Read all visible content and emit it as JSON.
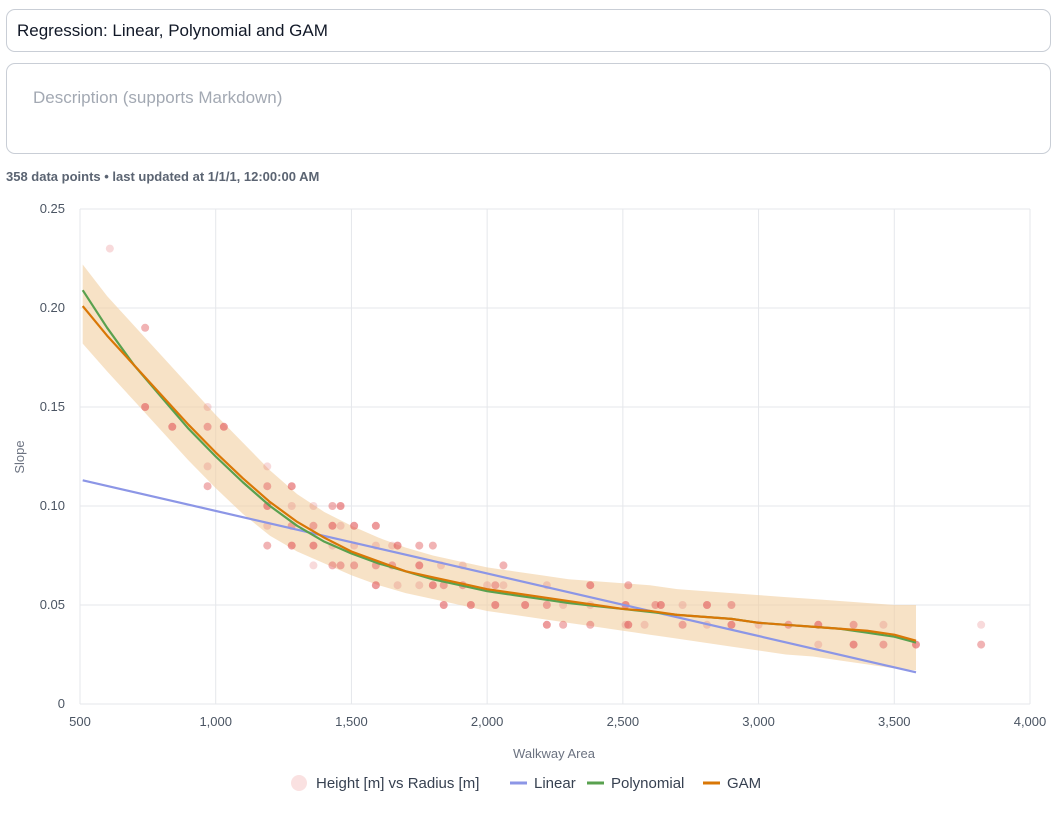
{
  "header": {
    "title_value": "Regression: Linear, Polynomial and GAM",
    "description_placeholder": "Description (supports Markdown)",
    "meta_text": "358 data points • last updated at 1/1/1, 12:00:00 AM"
  },
  "chart_data": {
    "type": "scatter",
    "xlabel": "Walkway Area",
    "ylabel": "Slope",
    "xlim": [
      500,
      4000
    ],
    "ylim": [
      0,
      0.25
    ],
    "x_ticks": [
      500,
      1000,
      1500,
      2000,
      2500,
      3000,
      3500,
      4000
    ],
    "x_tick_labels": [
      "500",
      "1,000",
      "1,500",
      "2,000",
      "2,500",
      "3,000",
      "3,500",
      "4,000"
    ],
    "y_ticks": [
      0,
      0.05,
      0.1,
      0.15,
      0.2,
      0.25
    ],
    "y_tick_labels": [
      "0",
      "0.05",
      "0.10",
      "0.15",
      "0.20",
      "0.25"
    ],
    "grid": true,
    "legend_position": "bottom",
    "colors": {
      "points": "#e15759",
      "linear": "#8c96e6",
      "polynomial": "#59a14f",
      "gam": "#d97706",
      "band": "#f2cfa0"
    },
    "scatter": {
      "name": "Height [m] vs Radius  [m]",
      "points": [
        [
          610,
          0.23
        ],
        [
          740,
          0.19
        ],
        [
          740,
          0.15
        ],
        [
          970,
          0.15
        ],
        [
          970,
          0.14
        ],
        [
          1030,
          0.14
        ],
        [
          970,
          0.12
        ],
        [
          970,
          0.11
        ],
        [
          840,
          0.14
        ],
        [
          1190,
          0.12
        ],
        [
          1190,
          0.11
        ],
        [
          1190,
          0.1
        ],
        [
          1190,
          0.09
        ],
        [
          1190,
          0.08
        ],
        [
          1280,
          0.11
        ],
        [
          1280,
          0.1
        ],
        [
          1280,
          0.09
        ],
        [
          1280,
          0.08
        ],
        [
          1360,
          0.1
        ],
        [
          1360,
          0.09
        ],
        [
          1360,
          0.08
        ],
        [
          1360,
          0.07
        ],
        [
          1430,
          0.1
        ],
        [
          1430,
          0.09
        ],
        [
          1430,
          0.08
        ],
        [
          1430,
          0.07
        ],
        [
          1460,
          0.1
        ],
        [
          1460,
          0.09
        ],
        [
          1460,
          0.07
        ],
        [
          1510,
          0.09
        ],
        [
          1510,
          0.08
        ],
        [
          1510,
          0.07
        ],
        [
          1590,
          0.09
        ],
        [
          1590,
          0.08
        ],
        [
          1590,
          0.07
        ],
        [
          1590,
          0.06
        ],
        [
          1650,
          0.08
        ],
        [
          1650,
          0.07
        ],
        [
          1670,
          0.08
        ],
        [
          1670,
          0.06
        ],
        [
          1750,
          0.08
        ],
        [
          1750,
          0.07
        ],
        [
          1750,
          0.06
        ],
        [
          1800,
          0.08
        ],
        [
          1800,
          0.06
        ],
        [
          1830,
          0.07
        ],
        [
          1840,
          0.06
        ],
        [
          1840,
          0.05
        ],
        [
          1910,
          0.07
        ],
        [
          1910,
          0.06
        ],
        [
          1940,
          0.05
        ],
        [
          2000,
          0.06
        ],
        [
          2030,
          0.06
        ],
        [
          2030,
          0.05
        ],
        [
          2060,
          0.06
        ],
        [
          2060,
          0.07
        ],
        [
          2140,
          0.05
        ],
        [
          2220,
          0.06
        ],
        [
          2220,
          0.05
        ],
        [
          2220,
          0.04
        ],
        [
          2280,
          0.05
        ],
        [
          2280,
          0.04
        ],
        [
          2380,
          0.06
        ],
        [
          2380,
          0.05
        ],
        [
          2380,
          0.04
        ],
        [
          2510,
          0.05
        ],
        [
          2510,
          0.04
        ],
        [
          2520,
          0.06
        ],
        [
          2520,
          0.04
        ],
        [
          2580,
          0.04
        ],
        [
          2620,
          0.05
        ],
        [
          2640,
          0.05
        ],
        [
          2720,
          0.05
        ],
        [
          2720,
          0.04
        ],
        [
          2810,
          0.05
        ],
        [
          2810,
          0.04
        ],
        [
          2900,
          0.05
        ],
        [
          2900,
          0.04
        ],
        [
          3000,
          0.04
        ],
        [
          3110,
          0.04
        ],
        [
          3220,
          0.04
        ],
        [
          3220,
          0.03
        ],
        [
          3350,
          0.04
        ],
        [
          3350,
          0.03
        ],
        [
          3460,
          0.04
        ],
        [
          3460,
          0.03
        ],
        [
          3580,
          0.03
        ],
        [
          3820,
          0.04
        ],
        [
          3820,
          0.03
        ]
      ]
    },
    "series": [
      {
        "name": "Linear",
        "x": [
          510,
          3580
        ],
        "y": [
          0.113,
          0.016
        ]
      },
      {
        "name": "Polynomial",
        "x": [
          510,
          600,
          700,
          800,
          900,
          1000,
          1100,
          1200,
          1300,
          1400,
          1500,
          1600,
          1700,
          1800,
          1900,
          2000,
          2100,
          2200,
          2300,
          2400,
          2500,
          2600,
          2700,
          2800,
          2900,
          3000,
          3100,
          3200,
          3300,
          3400,
          3500,
          3580
        ],
        "y": [
          0.209,
          0.19,
          0.171,
          0.155,
          0.139,
          0.125,
          0.112,
          0.1,
          0.09,
          0.082,
          0.076,
          0.071,
          0.067,
          0.063,
          0.06,
          0.057,
          0.055,
          0.053,
          0.051,
          0.0495,
          0.048,
          0.0465,
          0.045,
          0.044,
          0.043,
          0.041,
          0.04,
          0.039,
          0.038,
          0.036,
          0.034,
          0.031
        ]
      },
      {
        "name": "GAM",
        "x": [
          510,
          600,
          700,
          800,
          900,
          1000,
          1100,
          1200,
          1300,
          1400,
          1500,
          1600,
          1700,
          1800,
          1900,
          2000,
          2100,
          2200,
          2300,
          2400,
          2500,
          2600,
          2700,
          2800,
          2900,
          3000,
          3100,
          3200,
          3300,
          3400,
          3500,
          3580
        ],
        "y": [
          0.201,
          0.186,
          0.171,
          0.156,
          0.141,
          0.127,
          0.114,
          0.102,
          0.092,
          0.084,
          0.077,
          0.072,
          0.067,
          0.064,
          0.061,
          0.058,
          0.056,
          0.054,
          0.052,
          0.05,
          0.048,
          0.047,
          0.045,
          0.044,
          0.043,
          0.041,
          0.04,
          0.039,
          0.038,
          0.037,
          0.035,
          0.032
        ]
      }
    ],
    "gam_band": {
      "x": [
        510,
        600,
        700,
        800,
        900,
        1000,
        1100,
        1200,
        1300,
        1400,
        1500,
        1600,
        1700,
        1800,
        1900,
        2000,
        2100,
        2200,
        2300,
        2400,
        2500,
        2600,
        2700,
        2800,
        2900,
        3000,
        3100,
        3200,
        3300,
        3400,
        3500,
        3580
      ],
      "upper": [
        0.222,
        0.206,
        0.191,
        0.176,
        0.161,
        0.146,
        0.132,
        0.118,
        0.106,
        0.097,
        0.09,
        0.084,
        0.079,
        0.075,
        0.072,
        0.069,
        0.067,
        0.065,
        0.063,
        0.062,
        0.061,
        0.06,
        0.058,
        0.057,
        0.056,
        0.055,
        0.054,
        0.053,
        0.052,
        0.051,
        0.05,
        0.05
      ],
      "lower": [
        0.182,
        0.168,
        0.153,
        0.138,
        0.123,
        0.109,
        0.096,
        0.085,
        0.077,
        0.071,
        0.065,
        0.06,
        0.056,
        0.053,
        0.05,
        0.047,
        0.045,
        0.043,
        0.041,
        0.039,
        0.037,
        0.035,
        0.033,
        0.031,
        0.029,
        0.027,
        0.025,
        0.024,
        0.022,
        0.02,
        0.018,
        0.017
      ]
    }
  }
}
